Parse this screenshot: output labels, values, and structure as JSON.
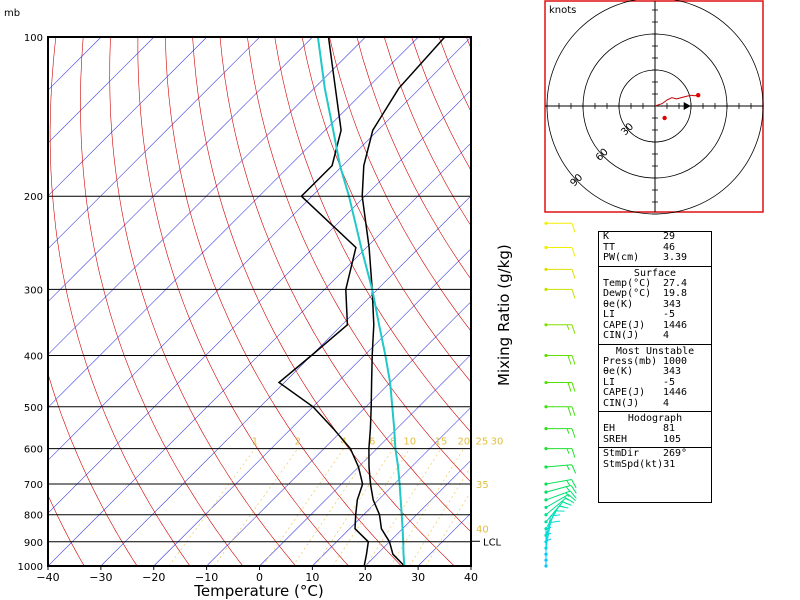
{
  "chart_data": {
    "type": "line",
    "pressure_unit": "mb",
    "xlabel": "Temperature (°C)",
    "mixing_ratio_label": "Mixing Ratio (g/kg)",
    "xlim": [
      -40,
      40
    ],
    "pressure_range": [
      100,
      1000
    ],
    "x_ticks": [
      -40,
      -30,
      -20,
      -10,
      0,
      10,
      20,
      30,
      40
    ],
    "p_ticks": [
      100,
      200,
      300,
      400,
      500,
      600,
      700,
      800,
      900,
      1000
    ],
    "mixing_ratio_labels": [
      "1",
      "2",
      "4",
      "6",
      "8",
      "10",
      "15",
      "20",
      "25",
      "30"
    ],
    "theta_e_labels": [
      "35",
      "40"
    ],
    "lcl_label": "LCL",
    "lcl_pressure": 898,
    "series": [
      {
        "key": "temperature",
        "points": [
          [
            1000,
            27.4
          ],
          [
            950,
            23
          ],
          [
            900,
            20
          ],
          [
            850,
            16
          ],
          [
            800,
            13
          ],
          [
            750,
            9
          ],
          [
            700,
            5.5
          ],
          [
            650,
            2
          ],
          [
            600,
            -1.5
          ],
          [
            550,
            -5
          ],
          [
            500,
            -9
          ],
          [
            450,
            -13.5
          ],
          [
            400,
            -18.5
          ],
          [
            350,
            -24
          ],
          [
            300,
            -31
          ],
          [
            250,
            -39.5
          ],
          [
            200,
            -50.5
          ],
          [
            175,
            -56
          ],
          [
            150,
            -61
          ],
          [
            125,
            -64
          ],
          [
            100,
            -65
          ]
        ]
      },
      {
        "key": "dewpoint",
        "points": [
          [
            1000,
            19.8
          ],
          [
            950,
            18
          ],
          [
            900,
            16
          ],
          [
            850,
            11
          ],
          [
            800,
            8.5
          ],
          [
            750,
            6
          ],
          [
            700,
            4
          ],
          [
            650,
            0
          ],
          [
            600,
            -5
          ],
          [
            550,
            -12
          ],
          [
            500,
            -20
          ],
          [
            450,
            -31
          ],
          [
            400,
            -30
          ],
          [
            350,
            -29
          ],
          [
            300,
            -36
          ],
          [
            250,
            -42
          ],
          [
            200,
            -62
          ],
          [
            175,
            -62
          ],
          [
            150,
            -67
          ],
          [
            125,
            -76
          ],
          [
            100,
            -87
          ]
        ]
      },
      {
        "key": "parcel",
        "points": [
          [
            1000,
            27.4
          ],
          [
            950,
            25
          ],
          [
            900,
            22.6
          ],
          [
            850,
            20
          ],
          [
            800,
            17.2
          ],
          [
            750,
            14.2
          ],
          [
            700,
            11
          ],
          [
            650,
            7.5
          ],
          [
            600,
            3.5
          ],
          [
            550,
            -0.5
          ],
          [
            500,
            -5
          ],
          [
            450,
            -10
          ],
          [
            400,
            -16
          ],
          [
            350,
            -23
          ],
          [
            300,
            -31
          ],
          [
            250,
            -41
          ],
          [
            200,
            -53
          ],
          [
            175,
            -60.5
          ],
          [
            150,
            -68.5
          ],
          [
            125,
            -78
          ],
          [
            100,
            -89
          ]
        ]
      }
    ],
    "wind_barbs": [
      {
        "p": 1000,
        "spd": 5,
        "dir": 180,
        "color": "#00c8ff"
      },
      {
        "p": 975,
        "spd": 5,
        "dir": 180,
        "color": "#00c8ff"
      },
      {
        "p": 950,
        "spd": 5,
        "dir": 180,
        "color": "#00c8ff"
      },
      {
        "p": 925,
        "spd": 10,
        "dir": 190,
        "color": "#00d8e0"
      },
      {
        "p": 900,
        "spd": 10,
        "dir": 190,
        "color": "#00d8e0"
      },
      {
        "p": 875,
        "spd": 10,
        "dir": 200,
        "color": "#00e0c8"
      },
      {
        "p": 850,
        "spd": 10,
        "dir": 210,
        "color": "#00e0b0"
      },
      {
        "p": 825,
        "spd": 15,
        "dir": 220,
        "color": "#00e0a0"
      },
      {
        "p": 800,
        "spd": 15,
        "dir": 230,
        "color": "#00e090"
      },
      {
        "p": 775,
        "spd": 15,
        "dir": 240,
        "color": "#00e080"
      },
      {
        "p": 750,
        "spd": 15,
        "dir": 250,
        "color": "#00e070"
      },
      {
        "p": 725,
        "spd": 15,
        "dir": 255,
        "color": "#00e060"
      },
      {
        "p": 700,
        "spd": 15,
        "dir": 260,
        "color": "#00e050"
      },
      {
        "p": 650,
        "spd": 15,
        "dir": 265,
        "color": "#10e040"
      },
      {
        "p": 600,
        "spd": 15,
        "dir": 270,
        "color": "#20e030"
      },
      {
        "p": 550,
        "spd": 15,
        "dir": 270,
        "color": "#30e020"
      },
      {
        "p": 500,
        "spd": 20,
        "dir": 270,
        "color": "#40e010"
      },
      {
        "p": 450,
        "spd": 20,
        "dir": 270,
        "color": "#50e000"
      },
      {
        "p": 400,
        "spd": 20,
        "dir": 270,
        "color": "#60e000"
      },
      {
        "p": 350,
        "spd": 15,
        "dir": 270,
        "color": "#80e000"
      },
      {
        "p": 300,
        "spd": 10,
        "dir": 270,
        "color": "#c8e000"
      },
      {
        "p": 275,
        "spd": 10,
        "dir": 270,
        "color": "#e0e000"
      },
      {
        "p": 250,
        "spd": 10,
        "dir": 270,
        "color": "#f0f000"
      },
      {
        "p": 225,
        "spd": 10,
        "dir": 270,
        "color": "#f0f000"
      },
      {
        "p": 200,
        "spd": 10,
        "dir": 270,
        "color": "#e8f000"
      },
      {
        "p": 175,
        "spd": 10,
        "dir": 270,
        "color": "#d8f000"
      },
      {
        "p": 150,
        "spd": 10,
        "dir": 270,
        "color": "#c8f000"
      },
      {
        "p": 125,
        "spd": 10,
        "dir": 270,
        "color": "#80f000"
      },
      {
        "p": 100,
        "spd": 5,
        "dir": 270,
        "color": "#60d8d8"
      }
    ],
    "hodograph": {
      "title": "knots",
      "ring_labels": [
        "30",
        "60",
        "90"
      ],
      "trace": [
        [
          0,
          0
        ],
        [
          6,
          2
        ],
        [
          10,
          5
        ],
        [
          14,
          7
        ],
        [
          18,
          6
        ],
        [
          22,
          7
        ],
        [
          26,
          8
        ],
        [
          30,
          9
        ],
        [
          33,
          8.5
        ],
        [
          36,
          9
        ]
      ],
      "storm_motion": [
        12,
        0
      ]
    }
  },
  "stats": {
    "k_label": "K",
    "k_value": "29",
    "tt_label": "TT",
    "tt_value": "46",
    "pw_label": "PW(cm)",
    "pw_value": "3.39",
    "surface_header": "Surface",
    "sfc_temp_label": "Temp(°C)",
    "sfc_temp": "27.4",
    "sfc_dewp_label": "Dewp(°C)",
    "sfc_dewp": "19.8",
    "sfc_thetae_label": "θe(K)",
    "sfc_thetae": "343",
    "sfc_li_label": "LI",
    "sfc_li": "-5",
    "sfc_cape_label": "CAPE(J)",
    "sfc_cape": "1446",
    "sfc_cin_label": "CIN(J)",
    "sfc_cin": "4",
    "mu_header": "Most Unstable",
    "mu_press_label": "Press(mb)",
    "mu_press": "1000",
    "mu_thetae_label": "θe(K)",
    "mu_thetae": "343",
    "mu_li_label": "LI",
    "mu_li": "-5",
    "mu_cape_label": "CAPE(J)",
    "mu_cape": "1446",
    "mu_cin_label": "CIN(J)",
    "mu_cin": "4",
    "hodo_header": "Hodograph",
    "eh_label": "EH",
    "eh": "81",
    "sreh_label": "SREH",
    "sreh": "105",
    "stmdir_label": "StmDir",
    "stmdir": "269°",
    "stmspd_label": "StmSpd(kt)",
    "stmspd": "31"
  }
}
